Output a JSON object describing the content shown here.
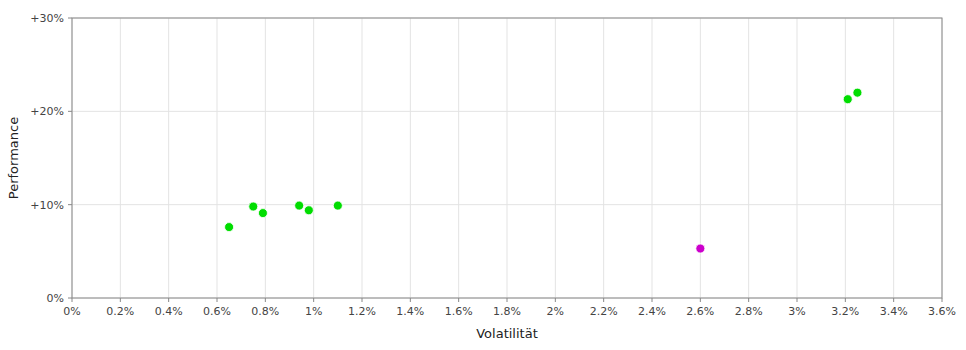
{
  "chart_data": {
    "type": "scatter",
    "xlabel": "Volatilität",
    "ylabel": "Performance",
    "xlim": [
      0,
      0.036
    ],
    "ylim": [
      0,
      0.3
    ],
    "xticks": [
      {
        "value": 0,
        "label": "0%"
      },
      {
        "value": 0.002,
        "label": "0.2%"
      },
      {
        "value": 0.004,
        "label": "0.4%"
      },
      {
        "value": 0.006,
        "label": "0.6%"
      },
      {
        "value": 0.008,
        "label": "0.8%"
      },
      {
        "value": 0.01,
        "label": "1%"
      },
      {
        "value": 0.012,
        "label": "1.2%"
      },
      {
        "value": 0.014,
        "label": "1.4%"
      },
      {
        "value": 0.016,
        "label": "1.6%"
      },
      {
        "value": 0.018,
        "label": "1.8%"
      },
      {
        "value": 0.02,
        "label": "2%"
      },
      {
        "value": 0.022,
        "label": "2.2%"
      },
      {
        "value": 0.024,
        "label": "2.4%"
      },
      {
        "value": 0.026,
        "label": "2.6%"
      },
      {
        "value": 0.028,
        "label": "2.8%"
      },
      {
        "value": 0.03,
        "label": "3%"
      },
      {
        "value": 0.032,
        "label": "3.2%"
      },
      {
        "value": 0.034,
        "label": "3.4%"
      },
      {
        "value": 0.036,
        "label": "3.6%"
      }
    ],
    "yticks": [
      {
        "value": 0,
        "label": "0%"
      },
      {
        "value": 0.1,
        "label": "+10%"
      },
      {
        "value": 0.2,
        "label": "+20%"
      },
      {
        "value": 0.3,
        "label": "+30%"
      }
    ],
    "grid": true,
    "series": [
      {
        "color": "#00dd00",
        "x": [
          0.0065,
          0.0075,
          0.0079,
          0.0094,
          0.0098,
          0.011,
          0.0321,
          0.0325
        ],
        "values": [
          0.076,
          0.098,
          0.091,
          0.099,
          0.094,
          0.099,
          0.213,
          0.22
        ]
      },
      {
        "color": "#cc00cc",
        "x": [
          0.026
        ],
        "values": [
          0.053
        ]
      }
    ]
  }
}
